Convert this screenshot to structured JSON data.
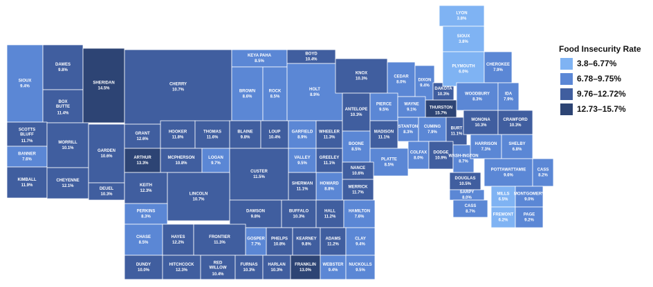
{
  "legend": {
    "title": "Food Insecurity Rate",
    "items": [
      {
        "label": "3.8–6.77%",
        "color": "#7fb3f3"
      },
      {
        "label": "6.78–9.75%",
        "color": "#5b87d5"
      },
      {
        "label": "9.76–12.72%",
        "color": "#405e9f"
      },
      {
        "label": "12.73–15.7%",
        "color": "#2d4474"
      }
    ]
  },
  "counties": [
    {
      "name": "SIOUX",
      "rate": "9.4%",
      "color": "#5b87d5"
    },
    {
      "name": "DAWES",
      "rate": "9.8%",
      "color": "#405e9f"
    },
    {
      "name": "BOX BUTTE",
      "rate": "11.4%",
      "color": "#405e9f"
    },
    {
      "name": "SHERIDAN",
      "rate": "14.5%",
      "color": "#2d4474"
    },
    {
      "name": "CHERRY",
      "rate": "10.7%",
      "color": "#405e9f"
    },
    {
      "name": "KEYA PAHA",
      "rate": "8.5%",
      "color": "#5b87d5"
    },
    {
      "name": "BOYD",
      "rate": "10.4%",
      "color": "#405e9f"
    },
    {
      "name": "BROWN",
      "rate": "8.6%",
      "color": "#5b87d5"
    },
    {
      "name": "ROCK",
      "rate": "8.5%",
      "color": "#5b87d5"
    },
    {
      "name": "HOLT",
      "rate": "8.9%",
      "color": "#5b87d5"
    },
    {
      "name": "KNOX",
      "rate": "10.3%",
      "color": "#405e9f"
    },
    {
      "name": "CEDAR",
      "rate": "8.0%",
      "color": "#5b87d5"
    },
    {
      "name": "DIXON",
      "rate": "9.4%",
      "color": "#5b87d5"
    },
    {
      "name": "DAKOTA",
      "rate": "10.3%",
      "color": "#405e9f"
    },
    {
      "name": "THURSTON",
      "rate": "15.7%",
      "color": "#2d4474"
    },
    {
      "name": "SCOTTS BLUFF",
      "rate": "11.7%",
      "color": "#405e9f"
    },
    {
      "name": "BANNER",
      "rate": "7.6%",
      "color": "#5b87d5"
    },
    {
      "name": "KIMBALL",
      "rate": "11.9%",
      "color": "#405e9f"
    },
    {
      "name": "MORRILL",
      "rate": "10.1%",
      "color": "#405e9f"
    },
    {
      "name": "CHEYENNE",
      "rate": "12.1%",
      "color": "#405e9f"
    },
    {
      "name": "GARDEN",
      "rate": "10.6%",
      "color": "#405e9f"
    },
    {
      "name": "DEUEL",
      "rate": "10.3%",
      "color": "#405e9f"
    },
    {
      "name": "GRANT",
      "rate": "12.6%",
      "color": "#405e9f"
    },
    {
      "name": "HOOKER",
      "rate": "11.8%",
      "color": "#405e9f"
    },
    {
      "name": "THOMAS",
      "rate": "11.6%",
      "color": "#405e9f"
    },
    {
      "name": "BLAINE",
      "rate": "9.8%",
      "color": "#405e9f"
    },
    {
      "name": "LOUP",
      "rate": "10.4%",
      "color": "#405e9f"
    },
    {
      "name": "GARFIELD",
      "rate": "8.9%",
      "color": "#5b87d5"
    },
    {
      "name": "WHEELER",
      "rate": "11.3%",
      "color": "#405e9f"
    },
    {
      "name": "ANTELOPE",
      "rate": "10.3%",
      "color": "#405e9f"
    },
    {
      "name": "PIERCE",
      "rate": "9.5%",
      "color": "#5b87d5"
    },
    {
      "name": "WAYNE",
      "rate": "9.1%",
      "color": "#5b87d5"
    },
    {
      "name": "STANTON",
      "rate": "8.3%",
      "color": "#5b87d5"
    },
    {
      "name": "MADISON",
      "rate": "11.1%",
      "color": "#405e9f"
    },
    {
      "name": "CUMING",
      "rate": "7.9%",
      "color": "#5b87d5"
    },
    {
      "name": "BURT",
      "rate": "11.1%",
      "color": "#405e9f"
    },
    {
      "name": "BOONE",
      "rate": "8.5%",
      "color": "#5b87d5"
    },
    {
      "name": "PLATTE",
      "rate": "8.5%",
      "color": "#5b87d5"
    },
    {
      "name": "COLFAX",
      "rate": "8.0%",
      "color": "#5b87d5"
    },
    {
      "name": "DODGE",
      "rate": "10.9%",
      "color": "#405e9f"
    },
    {
      "name": "WASH-INGTON",
      "rate": "8.7%",
      "color": "#5b87d5"
    },
    {
      "name": "ARTHUR",
      "rate": "13.3%",
      "color": "#2d4474"
    },
    {
      "name": "MCPHERSON",
      "rate": "10.8%",
      "color": "#405e9f"
    },
    {
      "name": "LOGAN",
      "rate": "9.7%",
      "color": "#5b87d5"
    },
    {
      "name": "CUSTER",
      "rate": "11.5%",
      "color": "#405e9f"
    },
    {
      "name": "VALLEY",
      "rate": "9.5%",
      "color": "#5b87d5"
    },
    {
      "name": "GREELEY",
      "rate": "11.1%",
      "color": "#405e9f"
    },
    {
      "name": "NANCE",
      "rate": "10.6%",
      "color": "#405e9f"
    },
    {
      "name": "MERRICK",
      "rate": "11.7%",
      "color": "#405e9f"
    },
    {
      "name": "HOWARD",
      "rate": "8.8%",
      "color": "#5b87d5"
    },
    {
      "name": "SHERMAN",
      "rate": "11.1%",
      "color": "#405e9f"
    },
    {
      "name": "DOUGLAS",
      "rate": "10.5%",
      "color": "#405e9f"
    },
    {
      "name": "SARPY",
      "rate": "8.0%",
      "color": "#5b87d5"
    },
    {
      "name": "KEITH",
      "rate": "12.3%",
      "color": "#405e9f"
    },
    {
      "name": "LINCOLN",
      "rate": "10.7%",
      "color": "#405e9f"
    },
    {
      "name": "PERKINS",
      "rate": "8.3%",
      "color": "#5b87d5"
    },
    {
      "name": "DAWSON",
      "rate": "9.8%",
      "color": "#405e9f"
    },
    {
      "name": "BUFFALO",
      "rate": "10.3%",
      "color": "#405e9f"
    },
    {
      "name": "HALL",
      "rate": "11.2%",
      "color": "#405e9f"
    },
    {
      "name": "HAMILTON",
      "rate": "7.6%",
      "color": "#5b87d5"
    },
    {
      "name": "CASS",
      "rate": "8.7%",
      "color": "#5b87d5"
    },
    {
      "name": "CHASE",
      "rate": "8.5%",
      "color": "#5b87d5"
    },
    {
      "name": "HAYES",
      "rate": "12.2%",
      "color": "#405e9f"
    },
    {
      "name": "FRONTIER",
      "rate": "11.3%",
      "color": "#405e9f"
    },
    {
      "name": "GOSPER",
      "rate": "7.7%",
      "color": "#5b87d5"
    },
    {
      "name": "PHELPS",
      "rate": "10.8%",
      "color": "#405e9f"
    },
    {
      "name": "KEARNEY",
      "rate": "9.8%",
      "color": "#405e9f"
    },
    {
      "name": "ADAMS",
      "rate": "11.2%",
      "color": "#405e9f"
    },
    {
      "name": "CLAY",
      "rate": "9.4%",
      "color": "#5b87d5"
    },
    {
      "name": "DUNDY",
      "rate": "10.0%",
      "color": "#405e9f"
    },
    {
      "name": "HITCHCOCK",
      "rate": "12.3%",
      "color": "#405e9f"
    },
    {
      "name": "RED WILLOW",
      "rate": "10.4%",
      "color": "#405e9f"
    },
    {
      "name": "FURNAS",
      "rate": "10.3%",
      "color": "#405e9f"
    },
    {
      "name": "HARLAN",
      "rate": "10.3%",
      "color": "#405e9f"
    },
    {
      "name": "FRANKLIN",
      "rate": "13.0%",
      "color": "#2d4474"
    },
    {
      "name": "WEBSTER",
      "rate": "9.4%",
      "color": "#5b87d5"
    },
    {
      "name": "NUCKOLLS",
      "rate": "9.5%",
      "color": "#5b87d5"
    },
    {
      "name": "LYON",
      "rate": "3.8%",
      "color": "#7fb3f3"
    },
    {
      "name": "SIOUX",
      "rate": "3.8%",
      "color": "#7fb3f3"
    },
    {
      "name": "PLYMOUTH",
      "rate": "6.0%",
      "color": "#7fb3f3"
    },
    {
      "name": "CHEROKEE",
      "rate": "7.9%",
      "color": "#5b87d5"
    },
    {
      "name": "WOODBURY",
      "rate": "8.3%",
      "color": "#5b87d5"
    },
    {
      "name": "IDA",
      "rate": "7.9%",
      "color": "#5b87d5"
    },
    {
      "name": "MONONA",
      "rate": "10.3%",
      "color": "#405e9f"
    },
    {
      "name": "CRAWFORD",
      "rate": "10.3%",
      "color": "#405e9f"
    },
    {
      "name": "HARRISON",
      "rate": "7.3%",
      "color": "#5b87d5"
    },
    {
      "name": "SHELBY",
      "rate": "6.8%",
      "color": "#5b87d5"
    },
    {
      "name": "POTTAWATTAMIE",
      "rate": "9.6%",
      "color": "#5b87d5"
    },
    {
      "name": "CASS",
      "rate": "8.2%",
      "color": "#5b87d5"
    },
    {
      "name": "MILLS",
      "rate": "6.5%",
      "color": "#7fb3f3"
    },
    {
      "name": "MONTGOMERY",
      "rate": "9.0%",
      "color": "#5b87d5"
    },
    {
      "name": "FREMONT",
      "rate": "6.2%",
      "color": "#7fb3f3"
    },
    {
      "name": "PAGE",
      "rate": "9.2%",
      "color": "#5b87d5"
    }
  ]
}
